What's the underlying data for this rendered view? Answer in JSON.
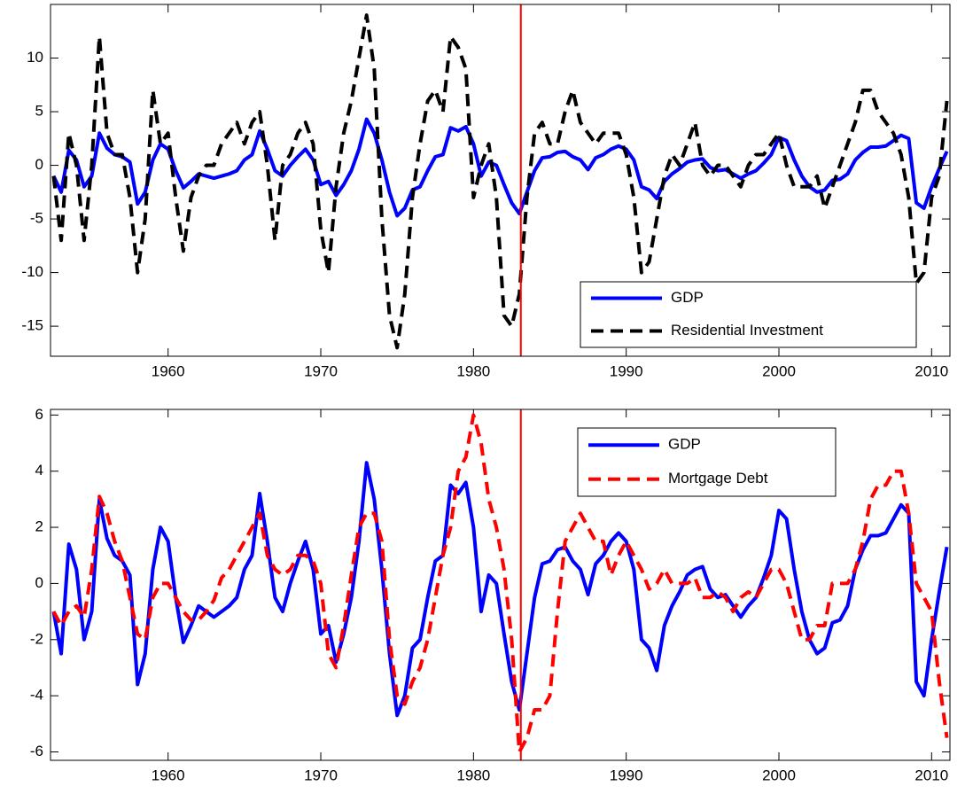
{
  "chart_data": [
    {
      "type": "line",
      "x": [
        1952.5,
        1953,
        1953.5,
        1954,
        1954.5,
        1955,
        1955.5,
        1956,
        1956.5,
        1957,
        1957.5,
        1958,
        1958.5,
        1959,
        1959.5,
        1960,
        1960.5,
        1961,
        1961.5,
        1962,
        1962.5,
        1963,
        1963.5,
        1964,
        1964.5,
        1965,
        1965.5,
        1966,
        1966.5,
        1967,
        1967.5,
        1968,
        1968.5,
        1969,
        1969.5,
        1970,
        1970.5,
        1971,
        1971.5,
        1972,
        1972.5,
        1973,
        1973.5,
        1974,
        1974.5,
        1975,
        1975.5,
        1976,
        1976.5,
        1977,
        1977.5,
        1978,
        1978.5,
        1979,
        1979.5,
        1980,
        1980.5,
        1981,
        1981.5,
        1982,
        1982.5,
        1983,
        1983.5,
        1984,
        1984.5,
        1985,
        1985.5,
        1986,
        1986.5,
        1987,
        1987.5,
        1988,
        1988.5,
        1989,
        1989.5,
        1990,
        1990.5,
        1991,
        1991.5,
        1992,
        1992.5,
        1993,
        1993.5,
        1994,
        1994.5,
        1995,
        1995.5,
        1996,
        1996.5,
        1997,
        1997.5,
        1998,
        1998.5,
        1999,
        1999.5,
        2000,
        2000.5,
        2001,
        2001.5,
        2002,
        2002.5,
        2003,
        2003.5,
        2004,
        2004.5,
        2005,
        2005.5,
        2006,
        2006.5,
        2007,
        2007.5,
        2008,
        2008.5,
        2009,
        2009.5,
        2010,
        2010.5,
        2011
      ],
      "series": [
        {
          "name": "GDP",
          "color": "#0000ff",
          "dashed": false,
          "values": [
            -1.0,
            -2.5,
            1.4,
            0.5,
            -2.0,
            -1.0,
            3.0,
            1.6,
            1.0,
            0.8,
            0.3,
            -3.6,
            -2.5,
            0.5,
            2.0,
            1.5,
            -0.5,
            -2.1,
            -1.5,
            -0.8,
            -1.0,
            -1.2,
            -1.0,
            -0.8,
            -0.5,
            0.5,
            1.0,
            3.2,
            1.5,
            -0.5,
            -1.0,
            0.0,
            0.8,
            1.5,
            0.5,
            -1.8,
            -1.5,
            -2.8,
            -1.8,
            -0.5,
            1.5,
            4.3,
            3.0,
            0.5,
            -2.5,
            -4.7,
            -4.0,
            -2.3,
            -2.0,
            -0.5,
            0.8,
            1.0,
            3.5,
            3.2,
            3.6,
            2.0,
            -1.0,
            0.3,
            0.0,
            -1.8,
            -3.5,
            -4.5,
            -2.5,
            -0.5,
            0.7,
            0.8,
            1.2,
            1.3,
            0.8,
            0.5,
            -0.4,
            0.7,
            1.0,
            1.5,
            1.8,
            1.5,
            0.5,
            -2.0,
            -2.3,
            -3.1,
            -1.5,
            -0.8,
            -0.3,
            0.3,
            0.5,
            0.6,
            -0.2,
            -0.5,
            -0.4,
            -0.8,
            -1.2,
            -0.8,
            -0.5,
            0.2,
            1.0,
            2.6,
            2.3,
            0.5,
            -1.0,
            -2.0,
            -2.5,
            -2.3,
            -1.4,
            -1.3,
            -0.8,
            0.5,
            1.2,
            1.7,
            1.7,
            1.8,
            2.3,
            2.8,
            2.5,
            -3.5,
            -4.0,
            -2.0,
            -0.3,
            1.3
          ]
        },
        {
          "name": "Residential Investment",
          "color": "#000000",
          "dashed": true,
          "values": [
            -1,
            -7,
            3,
            0,
            -7,
            0,
            12,
            3,
            1,
            1,
            -3,
            -10,
            -5,
            7,
            2,
            3,
            -3,
            -8,
            -3,
            -1,
            0,
            0,
            2,
            3,
            4,
            2,
            4,
            5,
            0,
            -7,
            0,
            1,
            3,
            4,
            2,
            -6,
            -10,
            -2,
            3,
            6,
            10,
            14,
            9,
            -5,
            -14,
            -17,
            -12,
            -3,
            2,
            6,
            7,
            5,
            12,
            11,
            9,
            -3,
            0,
            2,
            -3,
            -14,
            -15,
            -12,
            -3,
            3,
            4,
            2,
            2,
            5,
            7,
            4,
            3,
            2,
            3,
            3,
            3,
            1,
            -3,
            -10,
            -9,
            -5,
            -1,
            1,
            0,
            2,
            4,
            0,
            -1,
            0,
            0,
            -1,
            -2,
            0,
            1,
            1,
            2,
            3,
            0,
            -2,
            -2,
            -2,
            -1,
            -4,
            -2,
            0,
            2,
            4,
            7,
            7,
            5,
            4,
            3,
            1,
            -3,
            -11,
            -10,
            -3,
            -1,
            6
          ]
        }
      ],
      "xlim": [
        1952.3,
        2011.2
      ],
      "xticks": [
        1960,
        1970,
        1980,
        1990,
        2000,
        2010
      ],
      "ylim": [
        -17.8,
        15
      ],
      "yticks": [
        -15,
        -10,
        -5,
        0,
        5,
        10
      ],
      "grid": false,
      "legend": "lower right",
      "vline": {
        "x": 1983.1,
        "color": "#ff0000"
      }
    },
    {
      "type": "line",
      "x": [
        1952.5,
        1953,
        1953.5,
        1954,
        1954.5,
        1955,
        1955.5,
        1956,
        1956.5,
        1957,
        1957.5,
        1958,
        1958.5,
        1959,
        1959.5,
        1960,
        1960.5,
        1961,
        1961.5,
        1962,
        1962.5,
        1963,
        1963.5,
        1964,
        1964.5,
        1965,
        1965.5,
        1966,
        1966.5,
        1967,
        1967.5,
        1968,
        1968.5,
        1969,
        1969.5,
        1970,
        1970.5,
        1971,
        1971.5,
        1972,
        1972.5,
        1973,
        1973.5,
        1974,
        1974.5,
        1975,
        1975.5,
        1976,
        1976.5,
        1977,
        1977.5,
        1978,
        1978.5,
        1979,
        1979.5,
        1980,
        1980.5,
        1981,
        1981.5,
        1982,
        1982.5,
        1983,
        1983.5,
        1984,
        1984.5,
        1985,
        1985.5,
        1986,
        1986.5,
        1987,
        1987.5,
        1988,
        1988.5,
        1989,
        1989.5,
        1990,
        1990.5,
        1991,
        1991.5,
        1992,
        1992.5,
        1993,
        1993.5,
        1994,
        1994.5,
        1995,
        1995.5,
        1996,
        1996.5,
        1997,
        1997.5,
        1998,
        1998.5,
        1999,
        1999.5,
        2000,
        2000.5,
        2001,
        2001.5,
        2002,
        2002.5,
        2003,
        2003.5,
        2004,
        2004.5,
        2005,
        2005.5,
        2006,
        2006.5,
        2007,
        2007.5,
        2008,
        2008.5,
        2009,
        2009.5,
        2010,
        2010.5,
        2011
      ],
      "series": [
        {
          "name": "GDP",
          "color": "#0000ff",
          "dashed": false,
          "values": [
            -1.0,
            -2.5,
            1.4,
            0.5,
            -2.0,
            -1.0,
            3.0,
            1.6,
            1.0,
            0.8,
            0.3,
            -3.6,
            -2.5,
            0.5,
            2.0,
            1.5,
            -0.5,
            -2.1,
            -1.5,
            -0.8,
            -1.0,
            -1.2,
            -1.0,
            -0.8,
            -0.5,
            0.5,
            1.0,
            3.2,
            1.5,
            -0.5,
            -1.0,
            0.0,
            0.8,
            1.5,
            0.5,
            -1.8,
            -1.5,
            -2.8,
            -1.8,
            -0.5,
            1.5,
            4.3,
            3.0,
            0.5,
            -2.5,
            -4.7,
            -4.0,
            -2.3,
            -2.0,
            -0.5,
            0.8,
            1.0,
            3.5,
            3.2,
            3.6,
            2.0,
            -1.0,
            0.3,
            0.0,
            -1.8,
            -3.5,
            -4.5,
            -2.5,
            -0.5,
            0.7,
            0.8,
            1.2,
            1.3,
            0.8,
            0.5,
            -0.4,
            0.7,
            1.0,
            1.5,
            1.8,
            1.5,
            0.5,
            -2.0,
            -2.3,
            -3.1,
            -1.5,
            -0.8,
            -0.3,
            0.3,
            0.5,
            0.6,
            -0.2,
            -0.5,
            -0.4,
            -0.8,
            -1.2,
            -0.8,
            -0.5,
            0.2,
            1.0,
            2.6,
            2.3,
            0.5,
            -1.0,
            -2.0,
            -2.5,
            -2.3,
            -1.4,
            -1.3,
            -0.8,
            0.5,
            1.2,
            1.7,
            1.7,
            1.8,
            2.3,
            2.8,
            2.5,
            -3.5,
            -4.0,
            -2.0,
            -0.3,
            1.3
          ]
        },
        {
          "name": "Mortgage Debt",
          "color": "#ff0000",
          "dashed": true,
          "values": [
            -1.0,
            -1.5,
            -1.0,
            -0.8,
            -1.2,
            0.5,
            3.1,
            2.5,
            1.5,
            0.8,
            -0.5,
            -1.8,
            -2.0,
            -0.5,
            0.0,
            0.0,
            -0.5,
            -1.0,
            -1.3,
            -1.3,
            -1.0,
            -0.6,
            0.2,
            0.5,
            1.0,
            1.5,
            2.0,
            2.5,
            1.0,
            0.5,
            0.3,
            0.5,
            1.0,
            1.0,
            0.8,
            0.0,
            -2.5,
            -3.0,
            -1.5,
            0.3,
            2.0,
            2.5,
            2.5,
            1.5,
            -2.0,
            -4.0,
            -4.3,
            -3.5,
            -3.0,
            -2.0,
            -0.5,
            1.0,
            2.0,
            4.0,
            4.5,
            6.0,
            5.0,
            3.0,
            2.0,
            0.5,
            -2.0,
            -6.0,
            -5.5,
            -4.5,
            -4.5,
            -4.0,
            -1.0,
            1.5,
            2.0,
            2.5,
            2.0,
            1.5,
            1.5,
            0.3,
            1.0,
            1.5,
            1.0,
            0.5,
            -0.2,
            0.0,
            0.5,
            0.0,
            0.0,
            0.0,
            0.2,
            -0.5,
            -0.5,
            -0.3,
            -0.5,
            -1.0,
            -0.5,
            -0.3,
            -0.5,
            0.0,
            0.5,
            0.5,
            0.0,
            -1.0,
            -2.0,
            -2.0,
            -1.5,
            -1.5,
            0.0,
            0.0,
            0.0,
            0.5,
            1.5,
            3.0,
            3.5,
            3.5,
            4.0,
            4.0,
            2.5,
            0.0,
            -0.5,
            -1.0,
            -3.5,
            -5.5
          ]
        }
      ],
      "xlim": [
        1952.3,
        2011.2
      ],
      "xticks": [
        1960,
        1970,
        1980,
        1990,
        2000,
        2010
      ],
      "ylim": [
        -6.3,
        6.2
      ],
      "yticks": [
        -6,
        -4,
        -2,
        0,
        2,
        4,
        6
      ],
      "grid": false,
      "legend": "upper right",
      "vline": {
        "x": 1983.1,
        "color": "#ff0000"
      }
    }
  ]
}
